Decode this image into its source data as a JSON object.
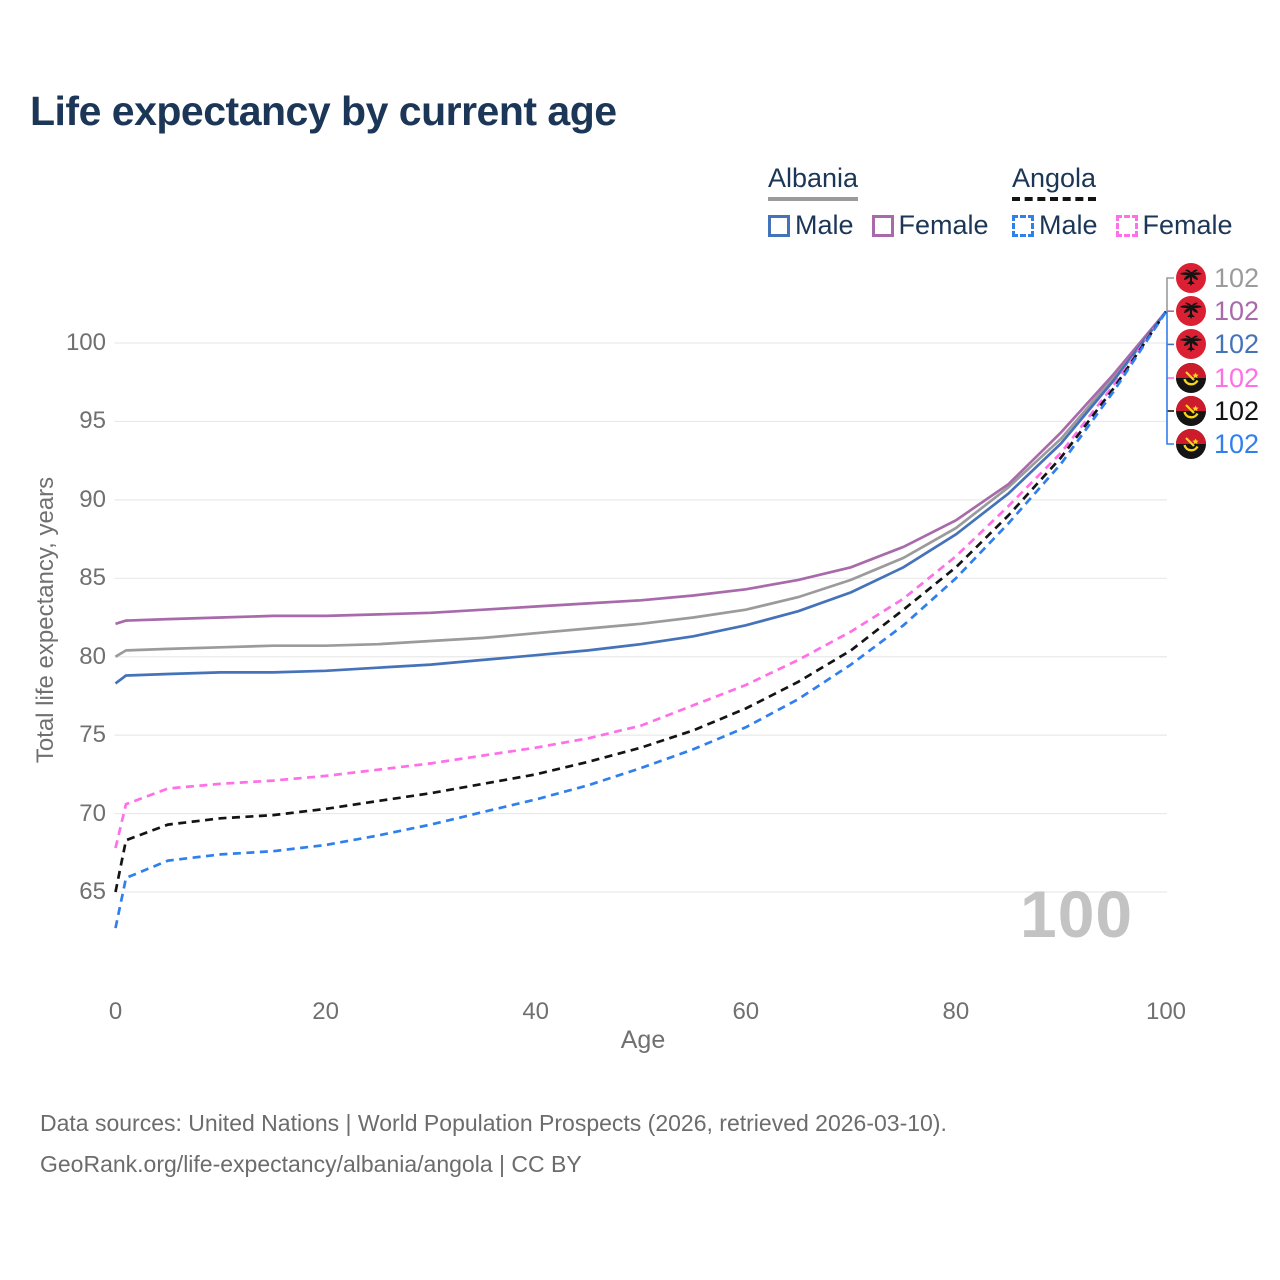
{
  "title": "Life expectancy by current age",
  "legend": {
    "groups": [
      {
        "name": "Albania",
        "items": [
          {
            "label": "Male"
          },
          {
            "label": "Female"
          }
        ]
      },
      {
        "name": "Angola",
        "items": [
          {
            "label": "Male"
          },
          {
            "label": "Female"
          }
        ]
      }
    ]
  },
  "chart_data": {
    "type": "line",
    "title": "Life expectancy by current age",
    "xlabel": "Age",
    "ylabel": "Total life expectancy, years",
    "xlim": [
      0,
      100
    ],
    "ylim": [
      62,
      103
    ],
    "x_ticks": [
      0,
      20,
      40,
      60,
      80,
      100
    ],
    "y_ticks": [
      65,
      70,
      75,
      80,
      85,
      90,
      95,
      100
    ],
    "grid": "horizontal",
    "legend_position": "top-right",
    "watermark": "100",
    "x": [
      0,
      1,
      5,
      10,
      15,
      20,
      25,
      30,
      35,
      40,
      45,
      50,
      55,
      60,
      65,
      70,
      75,
      80,
      85,
      90,
      95,
      100
    ],
    "series": [
      {
        "id": "alb_total",
        "name": "Albania (total)",
        "country": "Albania",
        "style": "solid",
        "color": "#9b9b9b",
        "values": [
          80.0,
          80.4,
          80.5,
          80.6,
          80.7,
          80.7,
          80.8,
          81.0,
          81.2,
          81.5,
          81.8,
          82.1,
          82.5,
          83.0,
          83.8,
          84.9,
          86.3,
          88.2,
          90.8,
          93.9,
          97.8,
          102
        ]
      },
      {
        "id": "alb_female",
        "name": "Albania Female",
        "country": "Albania",
        "style": "solid",
        "color": "#a86aaa",
        "values": [
          82.1,
          82.3,
          82.4,
          82.5,
          82.6,
          82.6,
          82.7,
          82.8,
          83.0,
          83.2,
          83.4,
          83.6,
          83.9,
          84.3,
          84.9,
          85.7,
          87.0,
          88.7,
          91.0,
          94.3,
          98.0,
          102
        ]
      },
      {
        "id": "alb_male",
        "name": "Albania Male",
        "country": "Albania",
        "style": "solid",
        "color": "#4573b9",
        "values": [
          78.3,
          78.8,
          78.9,
          79.0,
          79.0,
          79.1,
          79.3,
          79.5,
          79.8,
          80.1,
          80.4,
          80.8,
          81.3,
          82.0,
          82.9,
          84.1,
          85.7,
          87.8,
          90.4,
          93.6,
          97.6,
          102
        ]
      },
      {
        "id": "ang_female",
        "name": "Angola Female",
        "country": "Angola",
        "style": "dashed",
        "color": "#ff6fe8",
        "values": [
          67.8,
          70.6,
          71.6,
          71.9,
          72.1,
          72.4,
          72.8,
          73.2,
          73.7,
          74.2,
          74.8,
          75.6,
          76.9,
          78.2,
          79.8,
          81.6,
          83.7,
          86.4,
          89.6,
          93.0,
          97.3,
          102
        ]
      },
      {
        "id": "ang_total",
        "name": "Angola (total)",
        "country": "Angola",
        "style": "dashed",
        "color": "#141414",
        "values": [
          65.0,
          68.3,
          69.3,
          69.7,
          69.9,
          70.3,
          70.8,
          71.3,
          71.9,
          72.5,
          73.3,
          74.2,
          75.3,
          76.7,
          78.4,
          80.4,
          83.0,
          85.7,
          89.0,
          92.7,
          97.1,
          102
        ]
      },
      {
        "id": "ang_male",
        "name": "Angola Male",
        "country": "Angola",
        "style": "dashed",
        "color": "#2f80ed",
        "values": [
          62.7,
          65.9,
          67.0,
          67.4,
          67.6,
          68.0,
          68.6,
          69.3,
          70.1,
          70.9,
          71.8,
          72.9,
          74.1,
          75.5,
          77.3,
          79.5,
          82.0,
          85.0,
          88.5,
          92.3,
          96.9,
          102
        ]
      }
    ],
    "end_labels": [
      {
        "series": "alb_total",
        "flag": "albania",
        "value": "102",
        "color": "#9b9b9b"
      },
      {
        "series": "alb_female",
        "flag": "albania",
        "value": "102",
        "color": "#a86aaa"
      },
      {
        "series": "alb_male",
        "flag": "albania",
        "value": "102",
        "color": "#4573b9"
      },
      {
        "series": "ang_female",
        "flag": "angola",
        "value": "102",
        "color": "#ff6fe8"
      },
      {
        "series": "ang_total",
        "flag": "angola",
        "value": "102",
        "color": "#141414"
      },
      {
        "series": "ang_male",
        "flag": "angola",
        "value": "102",
        "color": "#2f80ed"
      }
    ]
  },
  "footer": {
    "line1": "Data sources: United Nations | World Population Prospects (2026, retrieved 2026-03-10).",
    "line2": "GeoRank.org/life-expectancy/albania/angola | CC BY"
  }
}
